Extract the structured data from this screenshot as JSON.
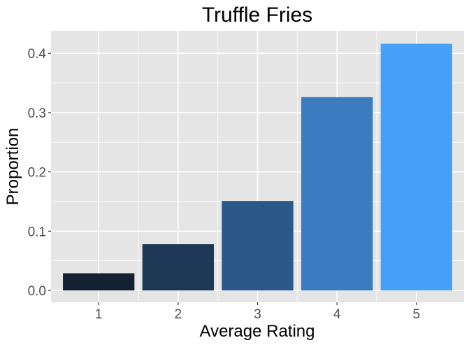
{
  "chart_data": {
    "type": "bar",
    "title": "Truffle Fries",
    "xlabel": "Average Rating",
    "ylabel": "Proportion",
    "categories": [
      "1",
      "2",
      "3",
      "4",
      "5"
    ],
    "values": [
      0.029,
      0.078,
      0.151,
      0.326,
      0.416
    ],
    "bar_colors": [
      "#132132",
      "#1d3757",
      "#2a5889",
      "#3a7cbf",
      "#47a0f8"
    ],
    "ylim": [
      -0.02,
      0.438
    ],
    "yticks": [
      0.0,
      0.1,
      0.2,
      0.3,
      0.4
    ],
    "ytick_labels": [
      "0.0",
      "0.1",
      "0.2",
      "0.3",
      "0.4"
    ],
    "grid": true,
    "legend": "none",
    "panel_background": "#e5e5e5",
    "grid_color": "#ffffff"
  }
}
